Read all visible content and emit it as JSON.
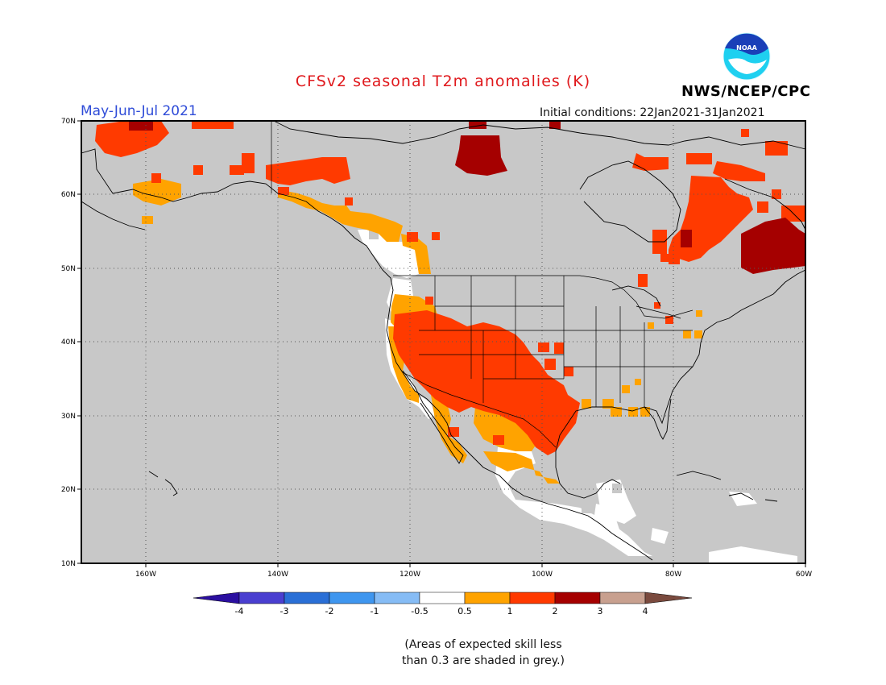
{
  "title": "CFSv2 seasonal T2m anomalies (K)",
  "period": "May-Jun-Jul 2021",
  "initial_conditions": "Initial conditions: 22Jan2021-31Jan2021",
  "agency": "NWS/NCEP/CPC",
  "logo_text": "NOAA",
  "footnote_line1": "(Areas of expected skill less",
  "footnote_line2": "than 0.3 are shaded in grey.)",
  "lat_labels": [
    "70N",
    "60N",
    "50N",
    "40N",
    "30N",
    "20N",
    "10N"
  ],
  "lon_labels": [
    "160W",
    "140W",
    "120W",
    "100W",
    "80W",
    "60W"
  ],
  "colorbar": {
    "labels": [
      "-4",
      "-3",
      "-2",
      "-1",
      "-0.5",
      "0.5",
      "1",
      "2",
      "3",
      "4"
    ],
    "colors": [
      "#2b0fa0",
      "#4a3fd0",
      "#2a6fd6",
      "#3f96ef",
      "#86bcf5",
      "#ffffff",
      "#ffa300",
      "#ff3a00",
      "#a50000",
      "#c8a08f",
      "#7a4a3e"
    ],
    "unit": "K"
  },
  "colors": {
    "grey_skill": "#c8c8c8",
    "white": "#ffffff",
    "orange": "#ffa300",
    "red": "#ff3a00",
    "dark_red": "#a50000"
  }
}
